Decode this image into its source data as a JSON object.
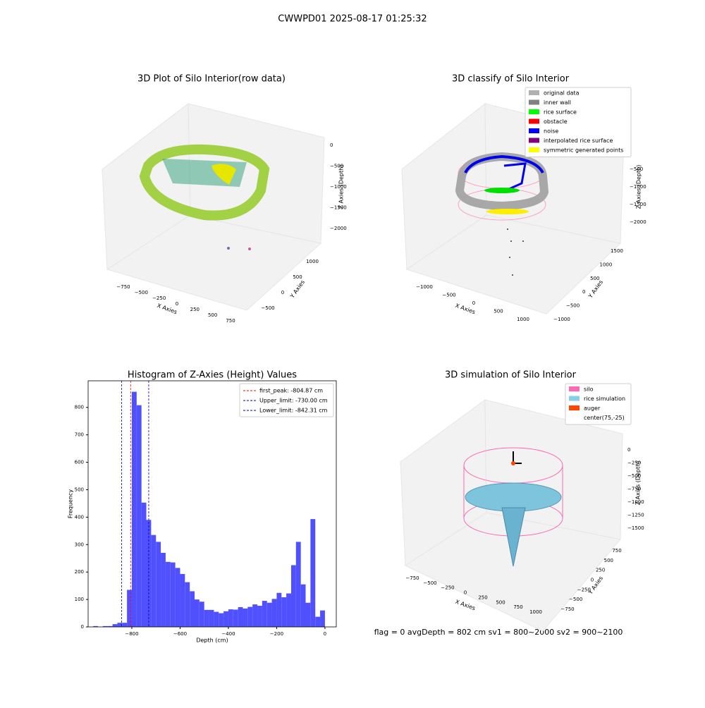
{
  "title": "CWWPD01 2025-08-17 01:25:32",
  "footer": "flag = 0     avgDepth = 802 cm  sv1 = 800~2000  sv2 = 900~2100",
  "chart_data": [
    {
      "type": "scatter3d",
      "title": "3D Plot of Silo Interior(row data)",
      "xlabel": "X Axies",
      "ylabel": "Y Axies",
      "zlabel": "Z Axies (Depth)",
      "xticks": [
        {
          "value": -750,
          "label": "−750"
        },
        {
          "value": -500,
          "label": "−500"
        },
        {
          "value": -250,
          "label": "−250"
        },
        0,
        250,
        500,
        750
      ],
      "yticks": [
        {
          "value": -500,
          "label": "−500"
        },
        0,
        500,
        1000
      ],
      "zticks": [
        0,
        {
          "value": -500,
          "label": "−500"
        },
        {
          "value": -1000,
          "label": "−1000"
        },
        {
          "value": -1500,
          "label": "−1500"
        },
        {
          "value": -2000,
          "label": "−2000"
        }
      ]
    },
    {
      "type": "scatter3d",
      "title": "3D classify of Silo Interior",
      "xlabel": "X Axies",
      "ylabel": "Y Axies",
      "zlabel": "Z Axies (Depth)",
      "xticks": [
        {
          "value": -1000,
          "label": "−1000"
        },
        {
          "value": -500,
          "label": "−500"
        },
        0,
        500,
        1000
      ],
      "yticks": [
        {
          "value": -1000,
          "label": "−1000"
        },
        {
          "value": -500,
          "label": "−500"
        },
        0,
        500,
        1000,
        1500
      ],
      "zticks": [
        {
          "value": -500,
          "label": "−500"
        },
        {
          "value": -1000,
          "label": "−1000"
        },
        {
          "value": -1500,
          "label": "−1500"
        },
        {
          "value": -2000,
          "label": "−2000"
        }
      ],
      "legend": [
        {
          "name": "original data",
          "color": "#b0b0b0"
        },
        {
          "name": "inner wall",
          "color": "#808080"
        },
        {
          "name": "rice surface",
          "color": "#00ff00"
        },
        {
          "name": "obstacle",
          "color": "#ff0000"
        },
        {
          "name": "noise",
          "color": "#0000ff"
        },
        {
          "name": "interpolated rice surface",
          "color": "#800080"
        },
        {
          "name": "symmetric generated points",
          "color": "#ffff00"
        }
      ]
    },
    {
      "type": "histogram",
      "title": "Histogram of Z-Axies (Height) Values",
      "xlabel": "Depth (cm)",
      "ylabel": "Frequency",
      "color": "#5050ff",
      "bins": [
        -960,
        -940,
        -920,
        -900,
        -880,
        -860,
        -840,
        -820,
        -800,
        -780,
        -760,
        -740,
        -720,
        -700,
        -680,
        -660,
        -640,
        -620,
        -600,
        -580,
        -560,
        -540,
        -520,
        -500,
        -480,
        -460,
        -440,
        -420,
        -400,
        -380,
        -360,
        -340,
        -320,
        -300,
        -280,
        -260,
        -240,
        -220,
        -200,
        -180,
        -160,
        -140,
        -120,
        -100,
        -80,
        -60,
        -40,
        -20,
        0
      ],
      "values": [
        3,
        0,
        3,
        3,
        10,
        15,
        15,
        135,
        857,
        808,
        453,
        390,
        335,
        310,
        270,
        237,
        235,
        215,
        193,
        163,
        130,
        100,
        92,
        62,
        62,
        55,
        50,
        57,
        64,
        63,
        72,
        67,
        73,
        82,
        77,
        95,
        88,
        102,
        124,
        108,
        122,
        225,
        310,
        155,
        88,
        393,
        37,
        60
      ],
      "xlim": [
        -981,
        47
      ],
      "ylim": [
        0,
        897
      ],
      "xticks": [
        {
          "value": -800,
          "label": "−800"
        },
        {
          "value": -600,
          "label": "−600"
        },
        {
          "value": -400,
          "label": "−400"
        },
        {
          "value": -200,
          "label": "−200"
        },
        0
      ],
      "yticks": [
        0,
        100,
        200,
        300,
        400,
        500,
        600,
        700,
        800
      ],
      "vlines": [
        {
          "name": "first_peak: -804.87 cm",
          "value": -804.87,
          "color": "#ff0000"
        },
        {
          "name": "Upper_limit: -730.00 cm",
          "value": -730.0,
          "color": "#0000aa"
        },
        {
          "name": "Lower_limit: -842.31 cm",
          "value": -842.31,
          "color": "#0000aa"
        }
      ],
      "legend_position": "upper right"
    },
    {
      "type": "surface3d",
      "title": "3D simulation of Silo Interior",
      "xlabel": "X Axies",
      "ylabel": "Y Axies",
      "zlabel": "Z Axies (Depth)",
      "xticks": [
        {
          "value": -750,
          "label": "−750"
        },
        {
          "value": -500,
          "label": "−500"
        },
        {
          "value": -250,
          "label": "−250"
        },
        0,
        250,
        500,
        750,
        1000
      ],
      "yticks": [
        {
          "value": -750,
          "label": "−750"
        },
        {
          "value": -500,
          "label": "−500"
        },
        {
          "value": -250,
          "label": "−250"
        },
        0,
        250,
        500,
        750
      ],
      "zticks": [
        0,
        {
          "value": -250,
          "label": "−250"
        },
        {
          "value": -500,
          "label": "−500"
        },
        {
          "value": -750,
          "label": "−750"
        },
        {
          "value": -1000,
          "label": "−1000"
        },
        {
          "value": -1250,
          "label": "−1250"
        },
        {
          "value": -1500,
          "label": "−1500"
        }
      ],
      "legend": [
        {
          "name": "silo",
          "color": "#ff69b4"
        },
        {
          "name": "rice simulation",
          "color": "#87ceeb"
        },
        {
          "name": "auger",
          "color": "#ff4500"
        },
        {
          "name": "center(75,-25)",
          "color": "#ffffff"
        }
      ]
    }
  ]
}
